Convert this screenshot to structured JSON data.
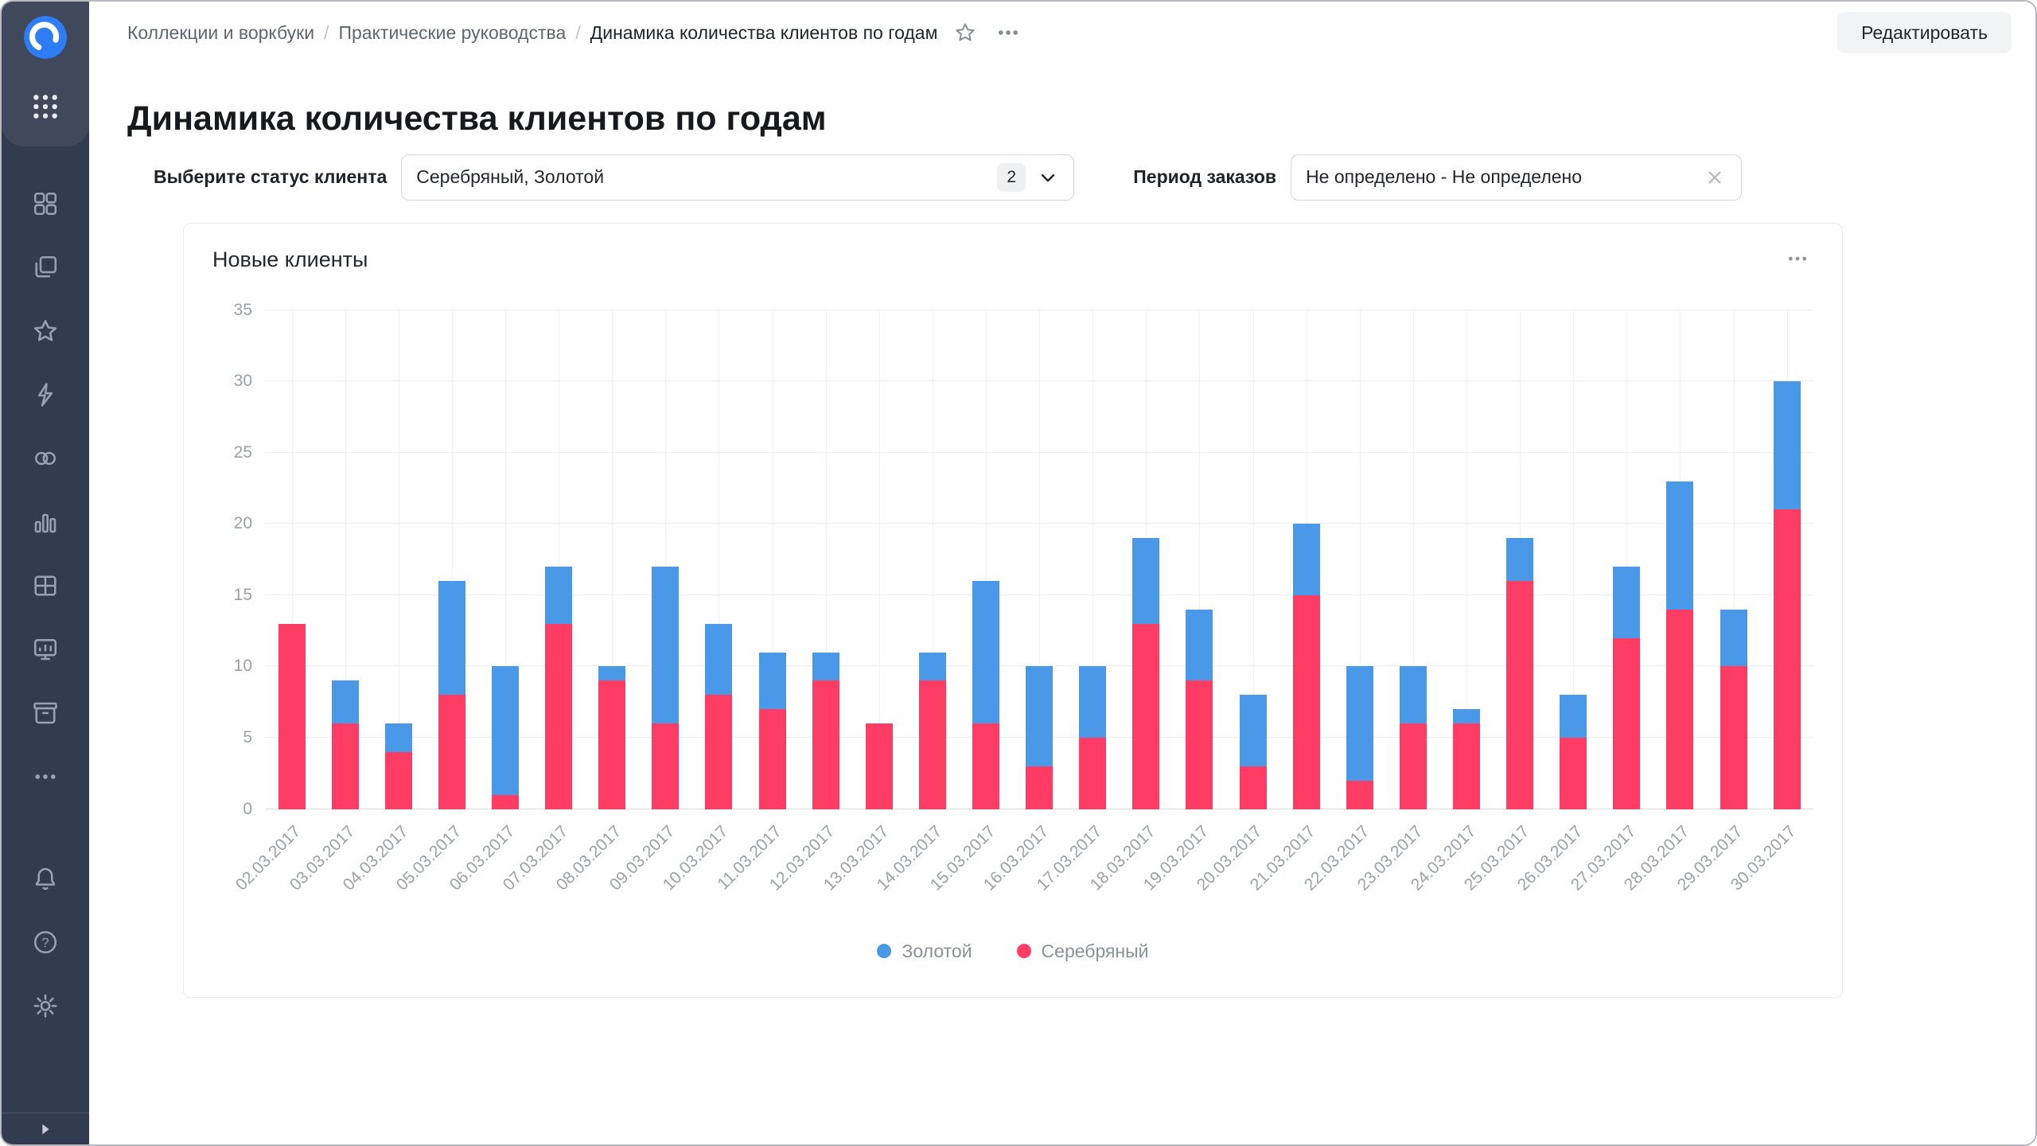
{
  "topbar": {
    "breadcrumb": [
      "Коллекции и воркбуки",
      "Практические руководства",
      "Динамика количества клиентов по годам"
    ],
    "separator": "/",
    "edit_button": "Редактировать"
  },
  "page": {
    "title": "Динамика количества клиентов по годам"
  },
  "filters": {
    "status_label": "Выберите статус клиента",
    "status_value": "Серебряный, Золотой",
    "status_count": "2",
    "period_label": "Период заказов",
    "period_value": "Не определено - Не определено"
  },
  "chart": {
    "title": "Новые клиенты"
  },
  "chart_data": {
    "type": "bar",
    "stacked": true,
    "title": "Новые клиенты",
    "categories": [
      "02.03.2017",
      "03.03.2017",
      "04.03.2017",
      "05.03.2017",
      "06.03.2017",
      "07.03.2017",
      "08.03.2017",
      "09.03.2017",
      "10.03.2017",
      "11.03.2017",
      "12.03.2017",
      "13.03.2017",
      "14.03.2017",
      "15.03.2017",
      "16.03.2017",
      "17.03.2017",
      "18.03.2017",
      "19.03.2017",
      "20.03.2017",
      "21.03.2017",
      "22.03.2017",
      "23.03.2017",
      "24.03.2017",
      "25.03.2017",
      "26.03.2017",
      "27.03.2017",
      "28.03.2017",
      "29.03.2017",
      "30.03.2017"
    ],
    "series": [
      {
        "name": "Золотой",
        "color": "#4a98e8",
        "values": [
          0,
          3,
          2,
          8,
          9,
          4,
          1,
          11,
          5,
          4,
          2,
          0,
          2,
          10,
          7,
          5,
          6,
          5,
          5,
          5,
          8,
          4,
          1,
          3,
          3,
          5,
          9,
          4,
          9
        ]
      },
      {
        "name": "Серебряный",
        "color": "#ff3d64",
        "values": [
          13,
          6,
          4,
          8,
          1,
          13,
          9,
          6,
          8,
          7,
          9,
          6,
          9,
          6,
          3,
          5,
          13,
          9,
          3,
          15,
          2,
          6,
          6,
          16,
          5,
          12,
          14,
          10,
          21
        ]
      }
    ],
    "xlabel": "",
    "ylabel": "",
    "ylim": [
      0,
      35
    ],
    "yticks": [
      0,
      5,
      10,
      15,
      20,
      25,
      30,
      35
    ],
    "grid": true,
    "legend_position": "bottom"
  },
  "sidebar": {
    "icons": [
      "datalens-logo",
      "apps-grid-icon",
      "home-grid-icon",
      "collections-icon",
      "favorites-star-icon",
      "ql-lightning-icon",
      "connections-icon",
      "charts-icon",
      "datasets-icon",
      "dashboards-icon",
      "storage-icon",
      "more-ellipsis-icon",
      "notifications-bell-icon",
      "help-icon",
      "settings-gear-icon",
      "sidebar-collapse-icon"
    ]
  },
  "colors": {
    "sidebar_bg": "#323c50",
    "series_gold": "#4a98e8",
    "series_silver": "#ff3d64",
    "logo_blue": "#2e7cf6"
  }
}
